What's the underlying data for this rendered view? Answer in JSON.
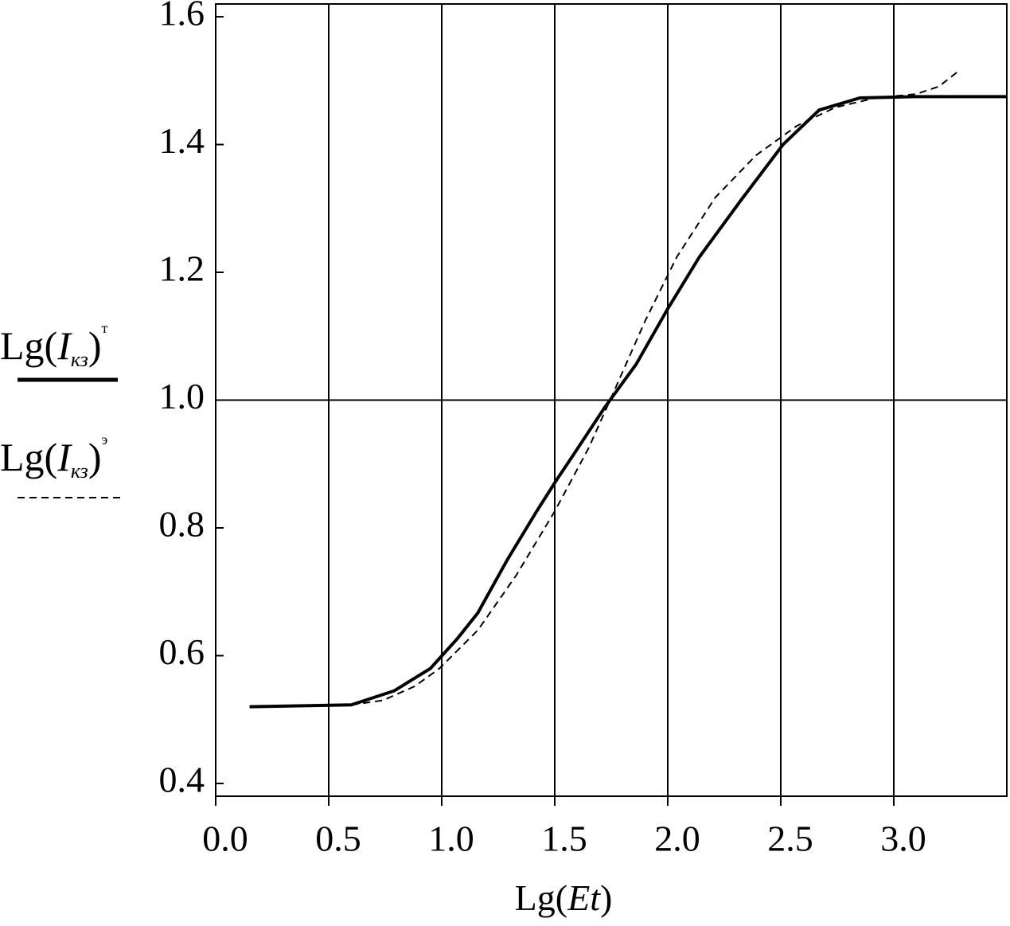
{
  "chart_data": {
    "type": "line",
    "xlabel": [
      "Lg(",
      "Et",
      ")"
    ],
    "xlim": [
      0,
      3.5
    ],
    "ylim": [
      0.38,
      1.62
    ],
    "xticks": [
      {
        "value": 0,
        "label": "0.0"
      },
      0.5,
      {
        "value": 1,
        "label": "1.0"
      },
      1.5,
      {
        "value": 2,
        "label": "2.0"
      },
      2.5,
      {
        "value": 3,
        "label": "3.0"
      }
    ],
    "yticks": [
      0.4,
      0.6,
      0.8,
      {
        "value": 1,
        "label": "1.0"
      },
      1.2,
      1.4,
      1.6
    ],
    "xgrid": [
      0.5,
      1,
      1.5,
      2,
      2.5,
      3
    ],
    "ygrid": [
      1
    ],
    "series": [
      {
        "name": [
          "Lg(",
          "I",
          "кз",
          ")",
          "т"
        ],
        "color": "#000000",
        "dash": false,
        "x": [
          0.15,
          0.6,
          0.79,
          0.95,
          1.07,
          1.16,
          1.29,
          1.42,
          1.51,
          1.58,
          1.72,
          1.86,
          2.0,
          2.14,
          2.32,
          2.51,
          2.67,
          2.85,
          3.1,
          3.5
        ],
        "values": [
          0.52,
          0.523,
          0.545,
          0.58,
          0.627,
          0.667,
          0.75,
          0.826,
          0.876,
          0.913,
          0.988,
          1.056,
          1.143,
          1.224,
          1.311,
          1.4,
          1.454,
          1.473,
          1.475,
          1.475
        ]
      },
      {
        "name": [
          "Lg(",
          "I",
          "кз",
          ")",
          "э"
        ],
        "color": "#000000",
        "dash": true,
        "x": [
          0.6,
          0.74,
          0.88,
          0.99,
          1.16,
          1.33,
          1.5,
          1.65,
          1.76,
          1.9,
          2.04,
          2.21,
          2.39,
          2.57,
          2.74,
          2.92,
          3.1,
          3.2,
          3.29
        ],
        "values": [
          0.523,
          0.53,
          0.552,
          0.58,
          0.64,
          0.726,
          0.826,
          0.925,
          1.012,
          1.124,
          1.224,
          1.317,
          1.383,
          1.429,
          1.458,
          1.473,
          1.479,
          1.491,
          1.516
        ]
      }
    ]
  }
}
